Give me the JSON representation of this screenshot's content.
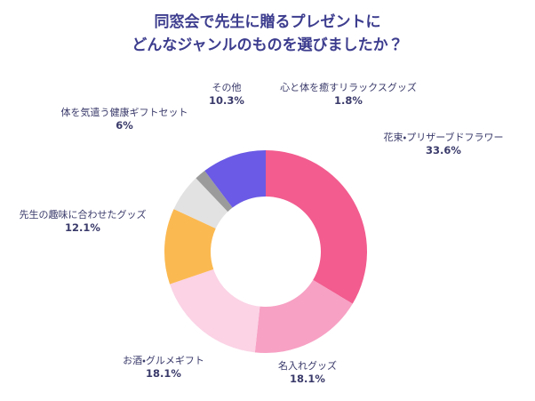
{
  "page": {
    "background_color": "#FFFFFF"
  },
  "chart_data": {
    "type": "pie",
    "subtype": "donut",
    "title_lines": [
      "同窓会で先生に贈るプレゼントに",
      "どんなジャンルのものを選びましたか？"
    ],
    "title_color": "#3D3D8F",
    "label_color": "#3A3A6B",
    "start_angle_deg": 0,
    "direction": "clockwise",
    "hole_ratio": 0.545,
    "legend_position": "labels-around-chart",
    "grid": false,
    "segments": [
      {
        "label": "花束・プリザーブドフラワー",
        "value": 33.6,
        "display": "33.6%",
        "color": "#F25C8F"
      },
      {
        "label": "名入れグッズ",
        "value": 18.1,
        "display": "18.1%",
        "color": "#F7A1C4"
      },
      {
        "label": "お酒・グルメギフト",
        "value": 18.1,
        "display": "18.1%",
        "color": "#FBD3E5"
      },
      {
        "label": "先生の趣味に合わせたグッズ",
        "value": 12.1,
        "display": "12.1%",
        "color": "#FBB951"
      },
      {
        "label": "体を気遣う健康ギフトセット",
        "value": 6,
        "display": "6%",
        "color": "#E2E2E2"
      },
      {
        "label": "心と体を癒すリラックスグッズ",
        "value": 1.8,
        "display": "1.8%",
        "color": "#9B9B9B"
      },
      {
        "label": "その他",
        "value": 10.3,
        "display": "10.3%",
        "color": "#6A5AE5"
      }
    ]
  }
}
